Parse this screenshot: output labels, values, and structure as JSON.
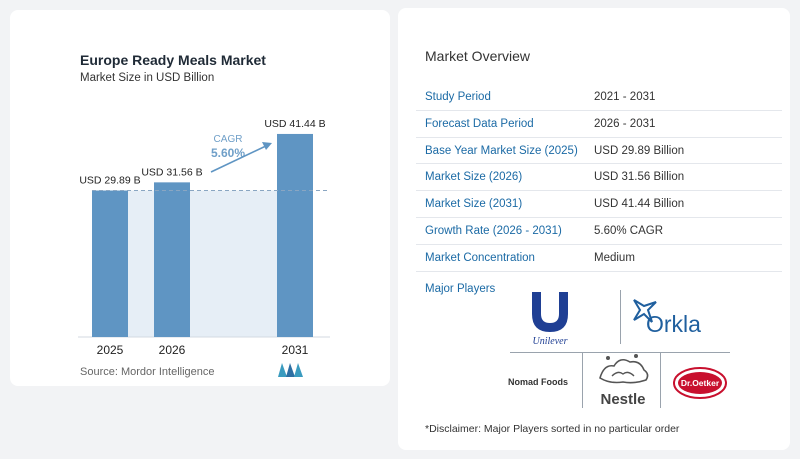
{
  "chart_data": {
    "type": "bar",
    "title": "Europe Ready Meals Market",
    "subtitle": "Market Size in USD Billion",
    "categories": [
      "2025",
      "2026",
      "2031"
    ],
    "values": [
      29.89,
      31.56,
      41.44
    ],
    "data_labels": [
      "USD 29.89 B",
      "USD 31.56 B",
      "USD 41.44 B"
    ],
    "cagr_label": "CAGR",
    "cagr_value": "5.60%",
    "colors": {
      "bar": "#5f95c3",
      "bar_top": "#4f86b7",
      "shade": "#e6eef6",
      "cagr": "#6f9fc8",
      "arrow": "#5f95c3"
    }
  },
  "source": "Source:  Mordor Intelligence",
  "overview": {
    "title": "Market Overview",
    "rows": [
      {
        "key": "Study Period",
        "value": "2021 - 2031"
      },
      {
        "key": "Forecast Data Period",
        "value": "2026 - 2031"
      },
      {
        "key": "Base Year Market Size (2025)",
        "value": "USD 29.89 Billion"
      },
      {
        "key": "Market Size (2026)",
        "value": "USD 31.56 Billion"
      },
      {
        "key": "Market Size (2031)",
        "value": "USD 41.44 Billion"
      },
      {
        "key": "Growth Rate (2026 - 2031)",
        "value": "5.60% CAGR"
      },
      {
        "key": "Market Concentration",
        "value": "Medium"
      }
    ],
    "players_label": "Major Players",
    "players": [
      "Unilever",
      "Orkla",
      "Nomad Foods",
      "Nestle",
      "Dr.Oetker"
    ],
    "disclaimer": "*Disclaimer: Major Players sorted in no particular order"
  }
}
